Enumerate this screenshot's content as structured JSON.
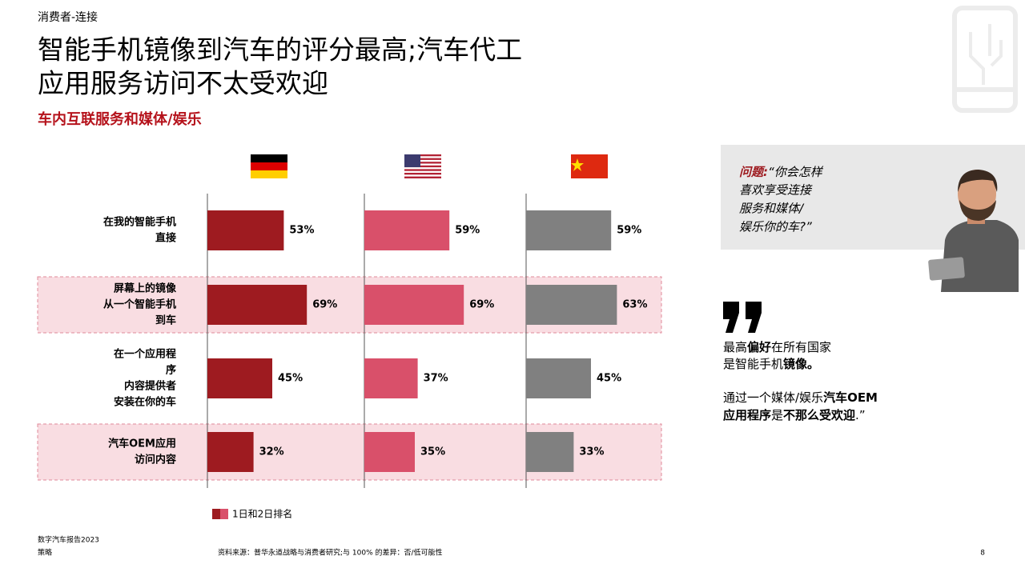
{
  "header": {
    "section": "消费者-连接",
    "title": [
      "智能手机镜像到汽车的评分最高;汽车代工",
      "应用服务访问不太受欢迎"
    ],
    "subtitle": "车内互联服务和媒体/娱乐"
  },
  "chart_data": {
    "type": "bar",
    "orientation": "horizontal",
    "categories": [
      [
        "在我的智能手机",
        "直接"
      ],
      [
        "屏幕上的镜像",
        "从一个智能手机",
        "到车"
      ],
      [
        "在一个应用程",
        "序",
        "内容提供者",
        "安装在你的车"
      ],
      [
        "汽车OEM应用",
        "访问内容"
      ]
    ],
    "highlighted": [
      false,
      true,
      false,
      true
    ],
    "series": [
      {
        "color": "#9e1b20",
        "values": [
          53,
          69,
          45,
          32
        ],
        "value_labels": [
          "53%",
          "69%",
          "45%",
          "32%"
        ]
      },
      {
        "color": "#d9506a",
        "values": [
          59,
          69,
          37,
          35
        ],
        "value_labels": [
          "59%",
          "69%",
          "37%",
          "35%"
        ]
      },
      {
        "color": "#808080",
        "values": [
          59,
          63,
          45,
          33
        ],
        "value_labels": [
          "59%",
          "63%",
          "45%",
          "33%"
        ]
      }
    ],
    "legend": "1日和2日排名"
  },
  "question": {
    "label": "问题:",
    "lines": [
      "“你会怎样",
      "喜欢享受连接",
      "服务和媒体/",
      "娱乐你的车?”"
    ]
  },
  "quote": {
    "lines": [
      [
        {
          "text": "最高"
        },
        {
          "text": "偏好",
          "bold": true
        },
        {
          "text": "在所有国家"
        }
      ],
      [
        {
          "text": "是智能手机"
        },
        {
          "text": "镜像。",
          "bold": true
        }
      ],
      [
        {
          "text": "通过一个媒体/娱乐"
        },
        {
          "text": "汽车OEM",
          "bold": true
        }
      ],
      [
        {
          "text": "应用程序",
          "bold": true
        },
        {
          "text": "是"
        },
        {
          "text": "不那么受欢迎",
          "bold": true
        },
        {
          "text": ".”"
        }
      ]
    ]
  },
  "footer": {
    "report": "数字汽车报告2023",
    "section": "策略",
    "source": "资料来源：普华永道战略与消费者研究;与 100% 的差异：否/低可能性",
    "page": "8"
  }
}
